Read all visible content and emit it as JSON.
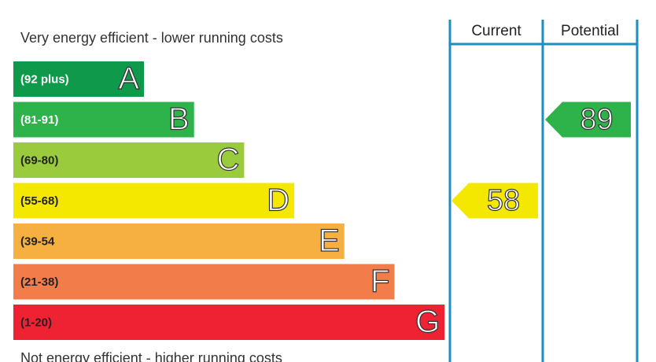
{
  "header_top": "Very energy efficient - lower running costs",
  "header_bottom": "Not energy efficient - higher running costs",
  "columns": [
    "Current",
    "Potential"
  ],
  "bands": [
    {
      "range": "(92 plus)",
      "letter": "A",
      "color": "#0f9a4b",
      "text_color": "#ffffff"
    },
    {
      "range": "(81-91)",
      "letter": "B",
      "color": "#2db34a",
      "text_color": "#ffffff"
    },
    {
      "range": "(69-80)",
      "letter": "C",
      "color": "#9acb3c",
      "text_color": "#222222"
    },
    {
      "range": "(55-68)",
      "letter": "D",
      "color": "#f5e800",
      "text_color": "#222222"
    },
    {
      "range": "(39-54",
      "letter": "E",
      "color": "#f5b041",
      "text_color": "#222222"
    },
    {
      "range": "(21-38)",
      "letter": "F",
      "color": "#f27c4a",
      "text_color": "#222222"
    },
    {
      "range": "(1-20)",
      "letter": "G",
      "color": "#ee2233",
      "text_color": "#222222"
    }
  ],
  "ratings": [
    58,
    89
  ]
}
